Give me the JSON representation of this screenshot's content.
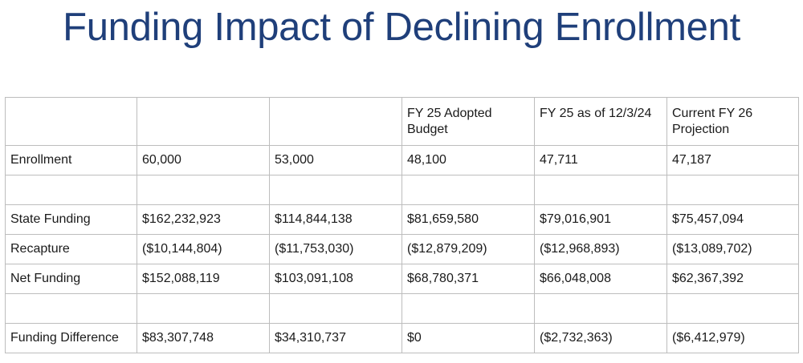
{
  "title": "Funding Impact of Declining Enrollment",
  "table": {
    "headers": [
      "",
      "",
      "",
      "FY 25 Adopted Budget",
      "FY 25 as of 12/3/24",
      "Current FY 26 Projection"
    ],
    "rows": [
      [
        "Enrollment",
        "60,000",
        "53,000",
        "48,100",
        "47,711",
        "47,187"
      ],
      [
        "",
        "",
        "",
        "",
        "",
        ""
      ],
      [
        "State Funding",
        "$162,232,923",
        "$114,844,138",
        "$81,659,580",
        "$79,016,901",
        "$75,457,094"
      ],
      [
        "Recapture",
        "($10,144,804)",
        "($11,753,030)",
        "($12,879,209)",
        "($12,968,893)",
        "($13,089,702)"
      ],
      [
        "Net Funding",
        "$152,088,119",
        "$103,091,108",
        "$68,780,371",
        "$66,048,008",
        "$62,367,392"
      ],
      [
        "",
        "",
        "",
        "",
        "",
        ""
      ],
      [
        "Funding Difference",
        "$83,307,748",
        "$34,310,737",
        "$0",
        "($2,732,363)",
        "($6,412,979)"
      ]
    ]
  },
  "colors": {
    "title": "#1f3f7a",
    "border": "#bdbdbd",
    "text": "#1a1a1a"
  }
}
